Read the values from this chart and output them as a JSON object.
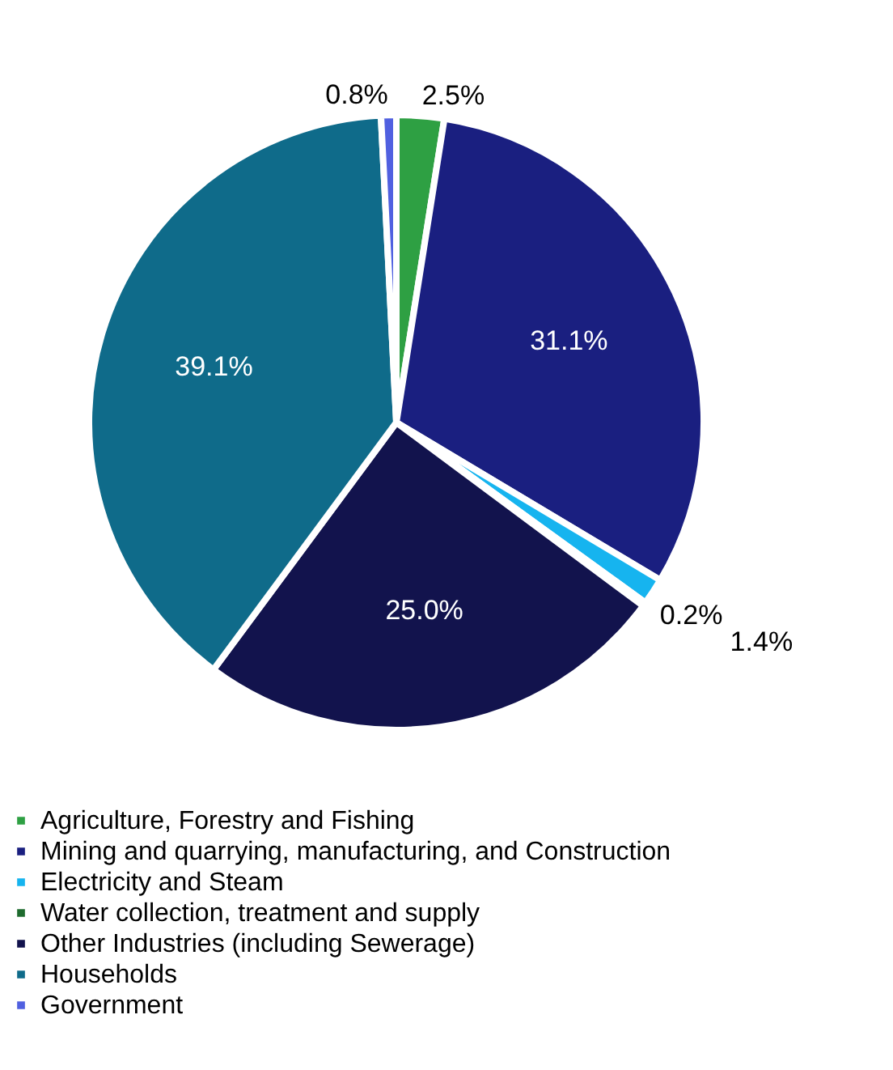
{
  "chart_data": {
    "type": "pie",
    "categories": [
      "Agriculture, Forestry and Fishing",
      "Mining and quarrying, manufacturing, and Construction",
      "Electricity and Steam",
      "Water collection, treatment and supply",
      "Other Industries (including Sewerage)",
      "Households",
      "Government"
    ],
    "values": [
      2.5,
      31.1,
      1.4,
      0.2,
      25.0,
      39.1,
      0.8
    ],
    "value_labels": [
      "2.5%",
      "31.1%",
      "1.4%",
      "0.2%",
      "25.0%",
      "39.1%",
      "0.8%"
    ],
    "colors": [
      "#2ea043",
      "#1a1f80",
      "#16b4ef",
      "#1e6b2e",
      "#12134d",
      "#0f6b8a",
      "#5060e0"
    ],
    "legend": "bottom"
  }
}
